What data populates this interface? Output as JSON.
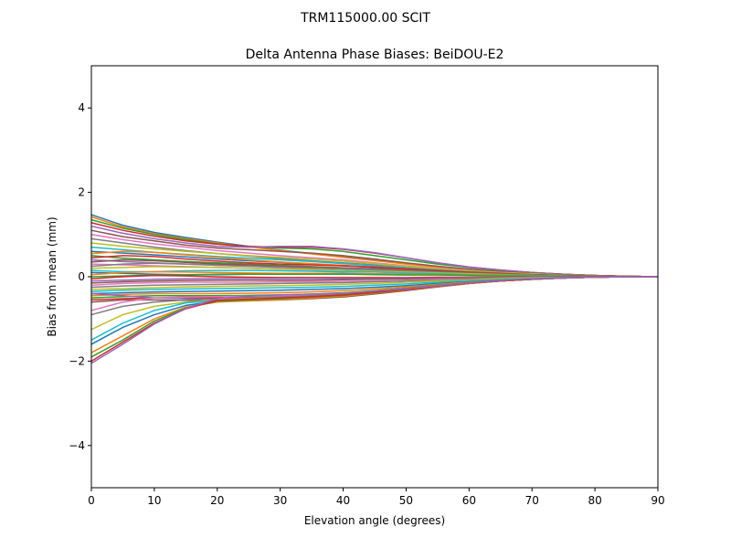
{
  "chart_data": {
    "type": "line",
    "suptitle": "TRM115000.00    SCIT",
    "title": "Delta Antenna Phase Biases: BeiDOU-E2",
    "xlabel": "Elevation angle (degrees)",
    "ylabel": "Bias from mean (mm)",
    "xlim": [
      0,
      90
    ],
    "ylim": [
      -5,
      5
    ],
    "xticks": [
      0,
      10,
      20,
      30,
      40,
      50,
      60,
      70,
      80,
      90
    ],
    "yticks": [
      -4,
      -2,
      0,
      2,
      4
    ],
    "ytick_labels": [
      "−4",
      "−2",
      "0",
      "2",
      "4"
    ],
    "grid": false,
    "legend": "none",
    "colors": [
      "#1f77b4",
      "#ff7f0e",
      "#2ca02c",
      "#d62728",
      "#9467bd",
      "#8c564b",
      "#e377c2",
      "#7f7f7f",
      "#bcbd22",
      "#17becf"
    ],
    "x": [
      0,
      5,
      10,
      15,
      20,
      25,
      30,
      35,
      40,
      45,
      50,
      55,
      60,
      65,
      70,
      75,
      80,
      85,
      90
    ],
    "series": [
      {
        "values": [
          1.47,
          1.22,
          1.05,
          0.93,
          0.82,
          0.72,
          0.63,
          0.55,
          0.47,
          0.39,
          0.31,
          0.24,
          0.17,
          0.12,
          0.08,
          0.05,
          0.03,
          0.01,
          0.0
        ]
      },
      {
        "values": [
          1.42,
          1.18,
          1.02,
          0.9,
          0.8,
          0.71,
          0.62,
          0.54,
          0.46,
          0.38,
          0.3,
          0.23,
          0.17,
          0.12,
          0.08,
          0.05,
          0.03,
          0.01,
          0.0
        ]
      },
      {
        "values": [
          1.35,
          1.15,
          1.0,
          0.88,
          0.78,
          0.72,
          0.68,
          0.66,
          0.6,
          0.5,
          0.4,
          0.3,
          0.22,
          0.15,
          0.1,
          0.06,
          0.03,
          0.01,
          0.0
        ]
      },
      {
        "values": [
          1.28,
          1.1,
          0.96,
          0.85,
          0.77,
          0.72,
          0.7,
          0.7,
          0.65,
          0.56,
          0.45,
          0.33,
          0.23,
          0.16,
          0.1,
          0.06,
          0.03,
          0.01,
          0.0
        ]
      },
      {
        "values": [
          1.2,
          1.03,
          0.9,
          0.8,
          0.72,
          0.7,
          0.72,
          0.72,
          0.66,
          0.57,
          0.45,
          0.33,
          0.23,
          0.16,
          0.1,
          0.06,
          0.03,
          0.01,
          0.0
        ]
      },
      {
        "values": [
          1.1,
          0.95,
          0.85,
          0.75,
          0.68,
          0.64,
          0.6,
          0.56,
          0.5,
          0.42,
          0.33,
          0.25,
          0.18,
          0.12,
          0.08,
          0.05,
          0.03,
          0.01,
          0.0
        ]
      },
      {
        "values": [
          1.0,
          0.88,
          0.78,
          0.7,
          0.62,
          0.56,
          0.5,
          0.45,
          0.4,
          0.33,
          0.26,
          0.2,
          0.15,
          0.1,
          0.07,
          0.04,
          0.02,
          0.01,
          0.0
        ]
      },
      {
        "values": [
          0.9,
          0.8,
          0.7,
          0.62,
          0.55,
          0.49,
          0.43,
          0.38,
          0.33,
          0.28,
          0.22,
          0.17,
          0.12,
          0.09,
          0.06,
          0.04,
          0.02,
          0.01,
          0.0
        ]
      },
      {
        "values": [
          0.8,
          0.72,
          0.66,
          0.6,
          0.55,
          0.5,
          0.46,
          0.42,
          0.37,
          0.31,
          0.25,
          0.19,
          0.14,
          0.1,
          0.07,
          0.04,
          0.02,
          0.01,
          0.0
        ]
      },
      {
        "values": [
          0.7,
          0.64,
          0.58,
          0.53,
          0.48,
          0.44,
          0.4,
          0.36,
          0.31,
          0.26,
          0.21,
          0.16,
          0.12,
          0.08,
          0.05,
          0.03,
          0.02,
          0.01,
          0.0
        ]
      },
      {
        "values": [
          0.6,
          0.56,
          0.52,
          0.47,
          0.42,
          0.38,
          0.34,
          0.3,
          0.26,
          0.22,
          0.18,
          0.14,
          0.1,
          0.07,
          0.05,
          0.03,
          0.02,
          0.01,
          0.0
        ]
      },
      {
        "values": [
          0.55,
          0.6,
          0.58,
          0.52,
          0.46,
          0.4,
          0.35,
          0.31,
          0.27,
          0.23,
          0.19,
          0.15,
          0.11,
          0.08,
          0.05,
          0.03,
          0.02,
          0.01,
          0.0
        ]
      },
      {
        "values": [
          0.5,
          0.44,
          0.4,
          0.36,
          0.33,
          0.3,
          0.27,
          0.24,
          0.21,
          0.18,
          0.15,
          0.12,
          0.09,
          0.06,
          0.04,
          0.03,
          0.02,
          0.01,
          0.0
        ]
      },
      {
        "values": [
          0.45,
          0.5,
          0.48,
          0.42,
          0.37,
          0.33,
          0.3,
          0.28,
          0.26,
          0.23,
          0.19,
          0.15,
          0.11,
          0.08,
          0.05,
          0.03,
          0.02,
          0.01,
          0.0
        ]
      },
      {
        "values": [
          0.4,
          0.36,
          0.33,
          0.3,
          0.27,
          0.25,
          0.22,
          0.2,
          0.18,
          0.15,
          0.13,
          0.1,
          0.08,
          0.06,
          0.04,
          0.02,
          0.01,
          0.0,
          0.0
        ]
      },
      {
        "values": [
          0.35,
          0.4,
          0.38,
          0.34,
          0.3,
          0.28,
          0.25,
          0.23,
          0.21,
          0.19,
          0.16,
          0.13,
          0.1,
          0.07,
          0.05,
          0.03,
          0.02,
          0.01,
          0.0
        ]
      },
      {
        "values": [
          0.3,
          0.28,
          0.26,
          0.24,
          0.22,
          0.2,
          0.18,
          0.16,
          0.14,
          0.12,
          0.1,
          0.08,
          0.06,
          0.04,
          0.03,
          0.02,
          0.01,
          0.0,
          0.0
        ]
      },
      {
        "values": [
          0.25,
          0.3,
          0.32,
          0.3,
          0.27,
          0.25,
          0.23,
          0.21,
          0.19,
          0.17,
          0.14,
          0.11,
          0.08,
          0.06,
          0.04,
          0.02,
          0.01,
          0.0,
          0.0
        ]
      },
      {
        "values": [
          0.2,
          0.22,
          0.24,
          0.23,
          0.22,
          0.2,
          0.18,
          0.17,
          0.15,
          0.13,
          0.11,
          0.09,
          0.07,
          0.05,
          0.03,
          0.02,
          0.01,
          0.0,
          0.0
        ]
      },
      {
        "values": [
          0.15,
          0.12,
          0.12,
          0.14,
          0.15,
          0.15,
          0.14,
          0.13,
          0.12,
          0.11,
          0.09,
          0.07,
          0.05,
          0.04,
          0.03,
          0.02,
          0.01,
          0.0,
          0.0
        ]
      },
      {
        "values": [
          0.1,
          0.08,
          0.06,
          0.05,
          0.05,
          0.06,
          0.07,
          0.08,
          0.08,
          0.07,
          0.06,
          0.05,
          0.04,
          0.03,
          0.02,
          0.01,
          0.01,
          0.0,
          0.0
        ]
      },
      {
        "values": [
          0.05,
          0.1,
          0.12,
          0.11,
          0.1,
          0.09,
          0.08,
          0.08,
          0.07,
          0.07,
          0.06,
          0.05,
          0.04,
          0.03,
          0.02,
          0.01,
          0.01,
          0.0,
          0.0
        ]
      },
      {
        "values": [
          0.0,
          0.02,
          0.04,
          0.05,
          0.06,
          0.06,
          0.06,
          0.06,
          0.06,
          0.05,
          0.04,
          0.04,
          0.03,
          0.02,
          0.01,
          0.01,
          0.0,
          0.0,
          0.0
        ]
      },
      {
        "values": [
          -0.05,
          0.0,
          0.03,
          0.02,
          0.0,
          -0.01,
          -0.02,
          -0.02,
          -0.02,
          -0.02,
          -0.02,
          -0.01,
          -0.01,
          -0.01,
          -0.01,
          0.0,
          0.0,
          0.0,
          0.0
        ]
      },
      {
        "values": [
          -0.1,
          -0.08,
          -0.06,
          -0.05,
          -0.04,
          -0.04,
          -0.04,
          -0.04,
          -0.04,
          -0.04,
          -0.03,
          -0.03,
          -0.02,
          -0.02,
          -0.01,
          -0.01,
          0.0,
          0.0,
          0.0
        ]
      },
      {
        "values": [
          -0.15,
          -0.12,
          -0.1,
          -0.09,
          -0.08,
          -0.08,
          -0.08,
          -0.08,
          -0.07,
          -0.06,
          -0.05,
          -0.04,
          -0.03,
          -0.02,
          -0.02,
          -0.01,
          -0.01,
          0.0,
          0.0
        ]
      },
      {
        "values": [
          -0.2,
          -0.16,
          -0.14,
          -0.13,
          -0.13,
          -0.13,
          -0.12,
          -0.12,
          -0.11,
          -0.1,
          -0.08,
          -0.06,
          -0.05,
          -0.03,
          -0.02,
          -0.01,
          -0.01,
          0.0,
          0.0
        ]
      },
      {
        "values": [
          -0.25,
          -0.22,
          -0.2,
          -0.19,
          -0.18,
          -0.17,
          -0.16,
          -0.15,
          -0.14,
          -0.12,
          -0.1,
          -0.08,
          -0.06,
          -0.04,
          -0.03,
          -0.02,
          -0.01,
          0.0,
          0.0
        ]
      },
      {
        "values": [
          -0.3,
          -0.28,
          -0.26,
          -0.24,
          -0.23,
          -0.22,
          -0.21,
          -0.2,
          -0.18,
          -0.16,
          -0.13,
          -0.1,
          -0.08,
          -0.05,
          -0.03,
          -0.02,
          -0.01,
          0.0,
          0.0
        ]
      },
      {
        "values": [
          -0.35,
          -0.32,
          -0.3,
          -0.29,
          -0.28,
          -0.27,
          -0.26,
          -0.25,
          -0.23,
          -0.2,
          -0.17,
          -0.13,
          -0.1,
          -0.07,
          -0.04,
          -0.02,
          -0.01,
          0.0,
          0.0
        ]
      },
      {
        "values": [
          -0.4,
          -0.38,
          -0.36,
          -0.35,
          -0.34,
          -0.33,
          -0.32,
          -0.3,
          -0.28,
          -0.25,
          -0.21,
          -0.16,
          -0.12,
          -0.08,
          -0.05,
          -0.03,
          -0.01,
          0.0,
          0.0
        ]
      },
      {
        "values": [
          -0.45,
          -0.42,
          -0.4,
          -0.4,
          -0.4,
          -0.39,
          -0.38,
          -0.36,
          -0.33,
          -0.29,
          -0.24,
          -0.18,
          -0.13,
          -0.09,
          -0.05,
          -0.03,
          -0.01,
          0.0,
          0.0
        ]
      },
      {
        "values": [
          -0.5,
          -0.47,
          -0.45,
          -0.45,
          -0.45,
          -0.44,
          -0.43,
          -0.41,
          -0.38,
          -0.33,
          -0.27,
          -0.2,
          -0.14,
          -0.09,
          -0.06,
          -0.03,
          -0.01,
          0.0,
          0.0
        ]
      },
      {
        "values": [
          -0.55,
          -0.52,
          -0.5,
          -0.5,
          -0.5,
          -0.49,
          -0.48,
          -0.46,
          -0.42,
          -0.37,
          -0.3,
          -0.22,
          -0.15,
          -0.1,
          -0.06,
          -0.03,
          -0.01,
          0.0,
          0.0
        ]
      },
      {
        "values": [
          -0.4,
          -0.45,
          -0.5,
          -0.52,
          -0.54,
          -0.54,
          -0.53,
          -0.5,
          -0.46,
          -0.4,
          -0.32,
          -0.24,
          -0.16,
          -0.1,
          -0.06,
          -0.03,
          -0.01,
          0.0,
          0.0
        ]
      },
      {
        "values": [
          -0.6,
          -0.55,
          -0.55,
          -0.56,
          -0.58,
          -0.57,
          -0.55,
          -0.52,
          -0.48,
          -0.41,
          -0.33,
          -0.24,
          -0.16,
          -0.1,
          -0.06,
          -0.03,
          -0.01,
          0.0,
          0.0
        ]
      },
      {
        "values": [
          -0.8,
          -0.6,
          -0.5,
          -0.48,
          -0.47,
          -0.46,
          -0.45,
          -0.43,
          -0.4,
          -0.35,
          -0.28,
          -0.21,
          -0.15,
          -0.1,
          -0.06,
          -0.03,
          -0.01,
          0.0,
          0.0
        ]
      },
      {
        "values": [
          -0.9,
          -0.7,
          -0.6,
          -0.55,
          -0.52,
          -0.5,
          -0.48,
          -0.45,
          -0.42,
          -0.36,
          -0.29,
          -0.22,
          -0.15,
          -0.1,
          -0.06,
          -0.03,
          -0.01,
          0.0,
          0.0
        ]
      },
      {
        "values": [
          -1.25,
          -0.9,
          -0.7,
          -0.6,
          -0.55,
          -0.52,
          -0.5,
          -0.47,
          -0.43,
          -0.37,
          -0.3,
          -0.22,
          -0.15,
          -0.1,
          -0.06,
          -0.03,
          -0.01,
          0.0,
          0.0
        ]
      },
      {
        "values": [
          -1.5,
          -1.1,
          -0.8,
          -0.62,
          -0.56,
          -0.54,
          -0.52,
          -0.49,
          -0.44,
          -0.38,
          -0.3,
          -0.22,
          -0.15,
          -0.1,
          -0.06,
          -0.03,
          -0.01,
          0.0,
          0.0
        ]
      },
      {
        "values": [
          -1.6,
          -1.2,
          -0.9,
          -0.68,
          -0.58,
          -0.56,
          -0.53,
          -0.5,
          -0.45,
          -0.39,
          -0.31,
          -0.23,
          -0.16,
          -0.1,
          -0.06,
          -0.03,
          -0.01,
          0.0,
          0.0
        ]
      },
      {
        "values": [
          -1.8,
          -1.4,
          -1.0,
          -0.72,
          -0.6,
          -0.57,
          -0.54,
          -0.5,
          -0.46,
          -0.39,
          -0.31,
          -0.23,
          -0.16,
          -0.1,
          -0.06,
          -0.03,
          -0.01,
          0.0,
          0.0
        ]
      },
      {
        "values": [
          -1.9,
          -1.5,
          -1.05,
          -0.74,
          -0.58,
          -0.55,
          -0.52,
          -0.48,
          -0.44,
          -0.38,
          -0.3,
          -0.22,
          -0.15,
          -0.1,
          -0.06,
          -0.03,
          -0.01,
          0.0,
          0.0
        ]
      },
      {
        "values": [
          -2.0,
          -1.55,
          -1.1,
          -0.76,
          -0.56,
          -0.53,
          -0.5,
          -0.47,
          -0.43,
          -0.37,
          -0.3,
          -0.22,
          -0.15,
          -0.1,
          -0.06,
          -0.03,
          -0.01,
          0.0,
          0.0
        ]
      },
      {
        "values": [
          -2.05,
          -1.6,
          -1.12,
          -0.75,
          -0.52,
          -0.46,
          -0.43,
          -0.41,
          -0.39,
          -0.34,
          -0.28,
          -0.21,
          -0.14,
          -0.09,
          -0.05,
          -0.03,
          -0.01,
          0.0,
          0.0
        ]
      }
    ]
  }
}
